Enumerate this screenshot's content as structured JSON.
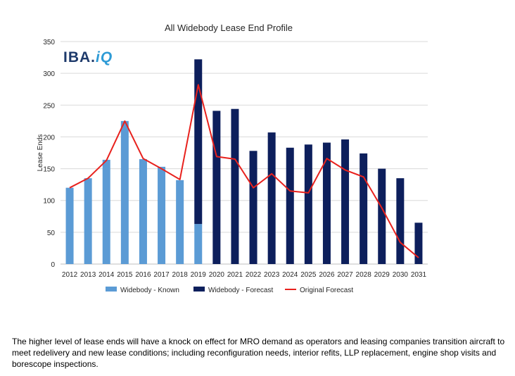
{
  "chart_data": {
    "type": "bar",
    "title": "All Widebody Lease End Profile",
    "xlabel": "",
    "ylabel": "Lease Ends",
    "ylim": [
      0,
      350
    ],
    "yticks": [
      0,
      50,
      100,
      150,
      200,
      250,
      300,
      350
    ],
    "grid": true,
    "legend_position": "bottom",
    "stacked": true,
    "categories": [
      "2012",
      "2013",
      "2014",
      "2015",
      "2016",
      "2017",
      "2018",
      "2019",
      "2020",
      "2021",
      "2022",
      "2023",
      "2024",
      "2025",
      "2026",
      "2027",
      "2028",
      "2029",
      "2030",
      "2031"
    ],
    "series": [
      {
        "name": "Widebody - Known",
        "kind": "bar",
        "color": "#5B9BD5",
        "values": [
          120,
          135,
          164,
          225,
          165,
          153,
          132,
          63,
          0,
          0,
          0,
          0,
          0,
          0,
          0,
          0,
          0,
          0,
          0,
          0
        ]
      },
      {
        "name": "Widebody - Forecast",
        "kind": "bar",
        "color": "#0D1F5C",
        "values": [
          0,
          0,
          0,
          0,
          0,
          0,
          0,
          259,
          241,
          244,
          178,
          207,
          183,
          188,
          191,
          196,
          174,
          150,
          135,
          65
        ]
      },
      {
        "name": "Original Forecast",
        "kind": "line",
        "color": "#E8211D",
        "values": [
          120,
          135,
          163,
          225,
          166,
          150,
          133,
          282,
          169,
          165,
          120,
          142,
          115,
          112,
          166,
          148,
          137,
          88,
          34,
          10
        ]
      }
    ]
  },
  "logo": {
    "text_main": "IBA.",
    "text_accent": "iQ"
  },
  "caption": "The higher level of lease ends will have a knock on effect for MRO demand as operators and leasing companies transition aircraft to meet redelivery and new lease conditions; including reconfiguration needs, interior refits, LLP replacement, engine shop visits and borescope inspections."
}
